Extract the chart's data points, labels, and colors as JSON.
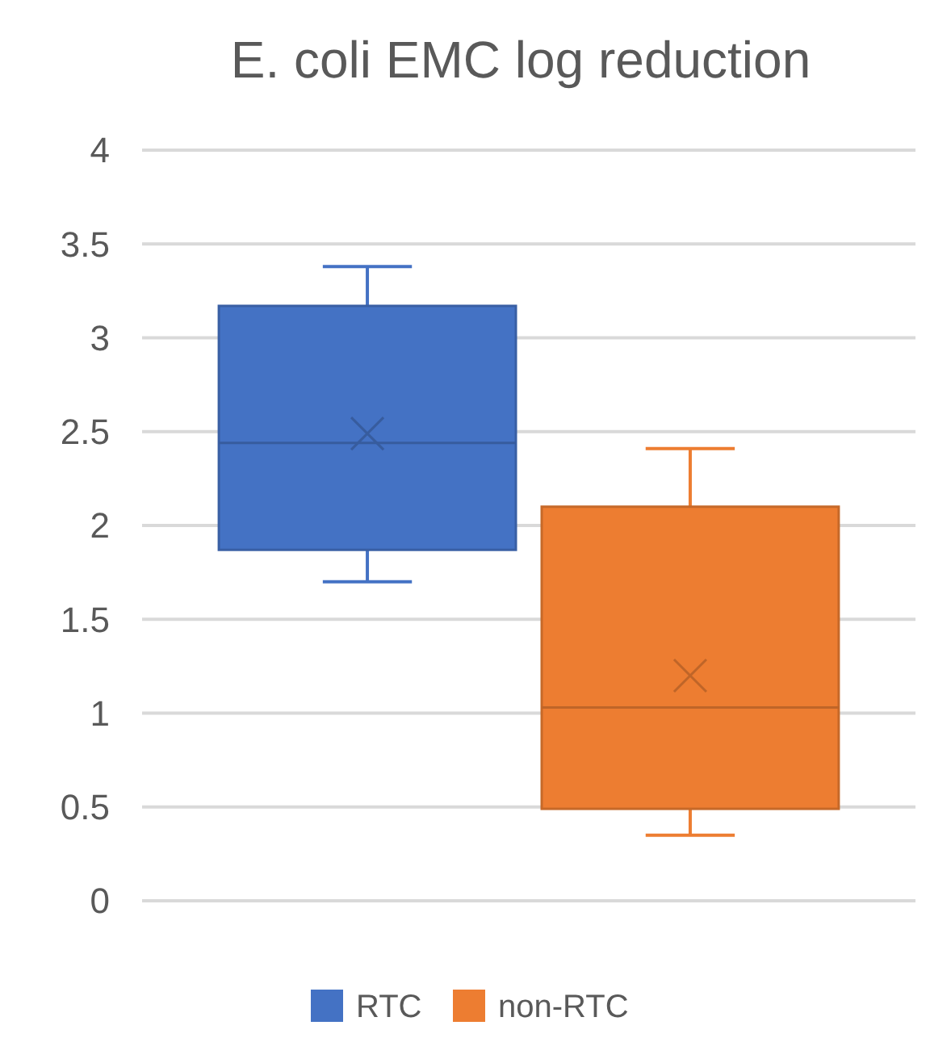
{
  "chart_data": {
    "type": "box",
    "title": "E. coli EMC log reduction",
    "categories": [
      null
    ],
    "series": [
      {
        "name": "RTC",
        "color": "#4472c4",
        "boxes": [
          {
            "low": 1.7,
            "q1": 1.87,
            "median": 2.44,
            "q3": 3.17,
            "high": 3.38,
            "mean": 2.49
          }
        ]
      },
      {
        "name": "non-RTC",
        "color": "#ed7d31",
        "boxes": [
          {
            "low": 0.35,
            "q1": 0.49,
            "median": 1.03,
            "q3": 2.1,
            "high": 2.41,
            "mean": 1.2
          }
        ]
      }
    ],
    "ylim": [
      0,
      4
    ],
    "yticks": [
      0,
      0.5,
      1,
      1.5,
      2,
      2.5,
      3,
      3.5,
      4
    ],
    "grid": "y",
    "legend": "bottom"
  }
}
